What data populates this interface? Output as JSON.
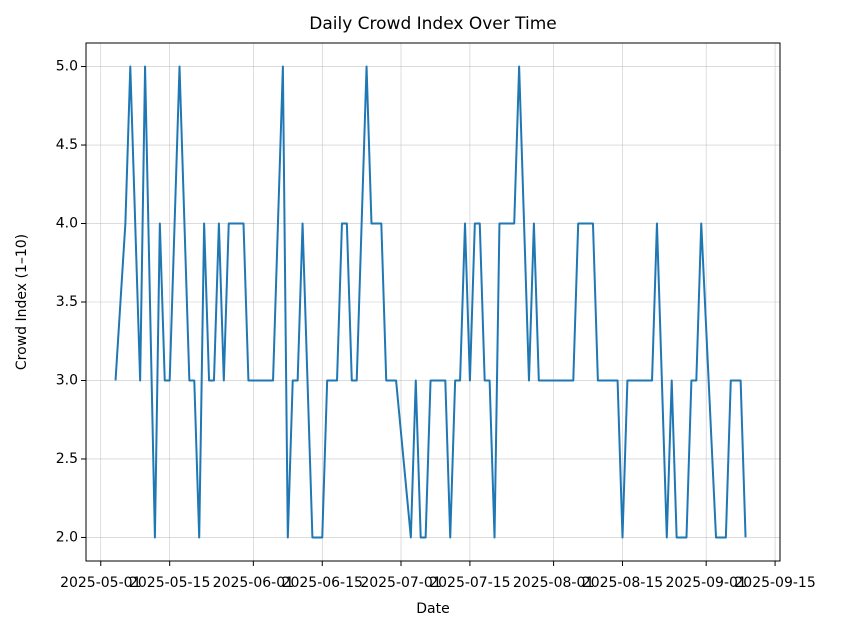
{
  "chart_data": {
    "type": "line",
    "title": "Daily Crowd Index Over Time",
    "xlabel": "Date",
    "ylabel": "Crowd Index (1–10)",
    "x": [
      "2025-05-04",
      "2025-05-06",
      "2025-05-07",
      "2025-05-09",
      "2025-05-10",
      "2025-05-12",
      "2025-05-13",
      "2025-05-14",
      "2025-05-15",
      "2025-05-17",
      "2025-05-19",
      "2025-05-20",
      "2025-05-21",
      "2025-05-22",
      "2025-05-23",
      "2025-05-24",
      "2025-05-25",
      "2025-05-26",
      "2025-05-27",
      "2025-05-30",
      "2025-05-31",
      "2025-06-05",
      "2025-06-07",
      "2025-06-08",
      "2025-06-09",
      "2025-06-10",
      "2025-06-11",
      "2025-06-13",
      "2025-06-15",
      "2025-06-16",
      "2025-06-18",
      "2025-06-19",
      "2025-06-20",
      "2025-06-21",
      "2025-06-22",
      "2025-06-24",
      "2025-06-25",
      "2025-06-27",
      "2025-06-28",
      "2025-06-30",
      "2025-07-03",
      "2025-07-04",
      "2025-07-05",
      "2025-07-06",
      "2025-07-07",
      "2025-07-10",
      "2025-07-11",
      "2025-07-12",
      "2025-07-13",
      "2025-07-14",
      "2025-07-15",
      "2025-07-16",
      "2025-07-17",
      "2025-07-18",
      "2025-07-19",
      "2025-07-20",
      "2025-07-21",
      "2025-07-24",
      "2025-07-25",
      "2025-07-27",
      "2025-07-28",
      "2025-07-29",
      "2025-08-05",
      "2025-08-06",
      "2025-08-09",
      "2025-08-10",
      "2025-08-14",
      "2025-08-15",
      "2025-08-16",
      "2025-08-21",
      "2025-08-22",
      "2025-08-24",
      "2025-08-25",
      "2025-08-26",
      "2025-08-28",
      "2025-08-29",
      "2025-08-30",
      "2025-08-31",
      "2025-09-03",
      "2025-09-05",
      "2025-09-06",
      "2025-09-08",
      "2025-09-09"
    ],
    "series": [
      {
        "name": "Crowd Index",
        "color": "#1f77b4",
        "values": [
          3,
          4,
          5,
          3,
          5,
          2,
          4,
          3,
          3,
          5,
          3,
          3,
          2,
          4,
          3,
          3,
          4,
          3,
          4,
          4,
          3,
          3,
          5,
          2,
          3,
          3,
          4,
          2,
          2,
          3,
          3,
          4,
          4,
          3,
          3,
          5,
          4,
          4,
          3,
          3,
          2,
          3,
          2,
          2,
          3,
          3,
          2,
          3,
          3,
          4,
          3,
          4,
          4,
          3,
          3,
          2,
          4,
          4,
          5,
          3,
          4,
          3,
          3,
          4,
          4,
          3,
          3,
          2,
          3,
          3,
          4,
          2,
          3,
          2,
          2,
          3,
          3,
          4,
          2,
          2,
          3,
          3,
          2
        ]
      }
    ],
    "xlim": [
      "2025-04-28",
      "2025-09-16"
    ],
    "xticks": [
      "2025-05-01",
      "2025-05-15",
      "2025-06-01",
      "2025-06-15",
      "2025-07-01",
      "2025-07-15",
      "2025-08-01",
      "2025-08-15",
      "2025-09-01",
      "2025-09-15"
    ],
    "ylim": [
      1.85,
      5.15
    ],
    "yticks": [
      {
        "value": 2,
        "label": "2.0"
      },
      {
        "value": 2.5,
        "label": "2.5"
      },
      {
        "value": 3,
        "label": "3.0"
      },
      {
        "value": 3.5,
        "label": "3.5"
      },
      {
        "value": 4,
        "label": "4.0"
      },
      {
        "value": 4.5,
        "label": "4.5"
      },
      {
        "value": 5,
        "label": "5.0"
      }
    ],
    "grid": true
  }
}
